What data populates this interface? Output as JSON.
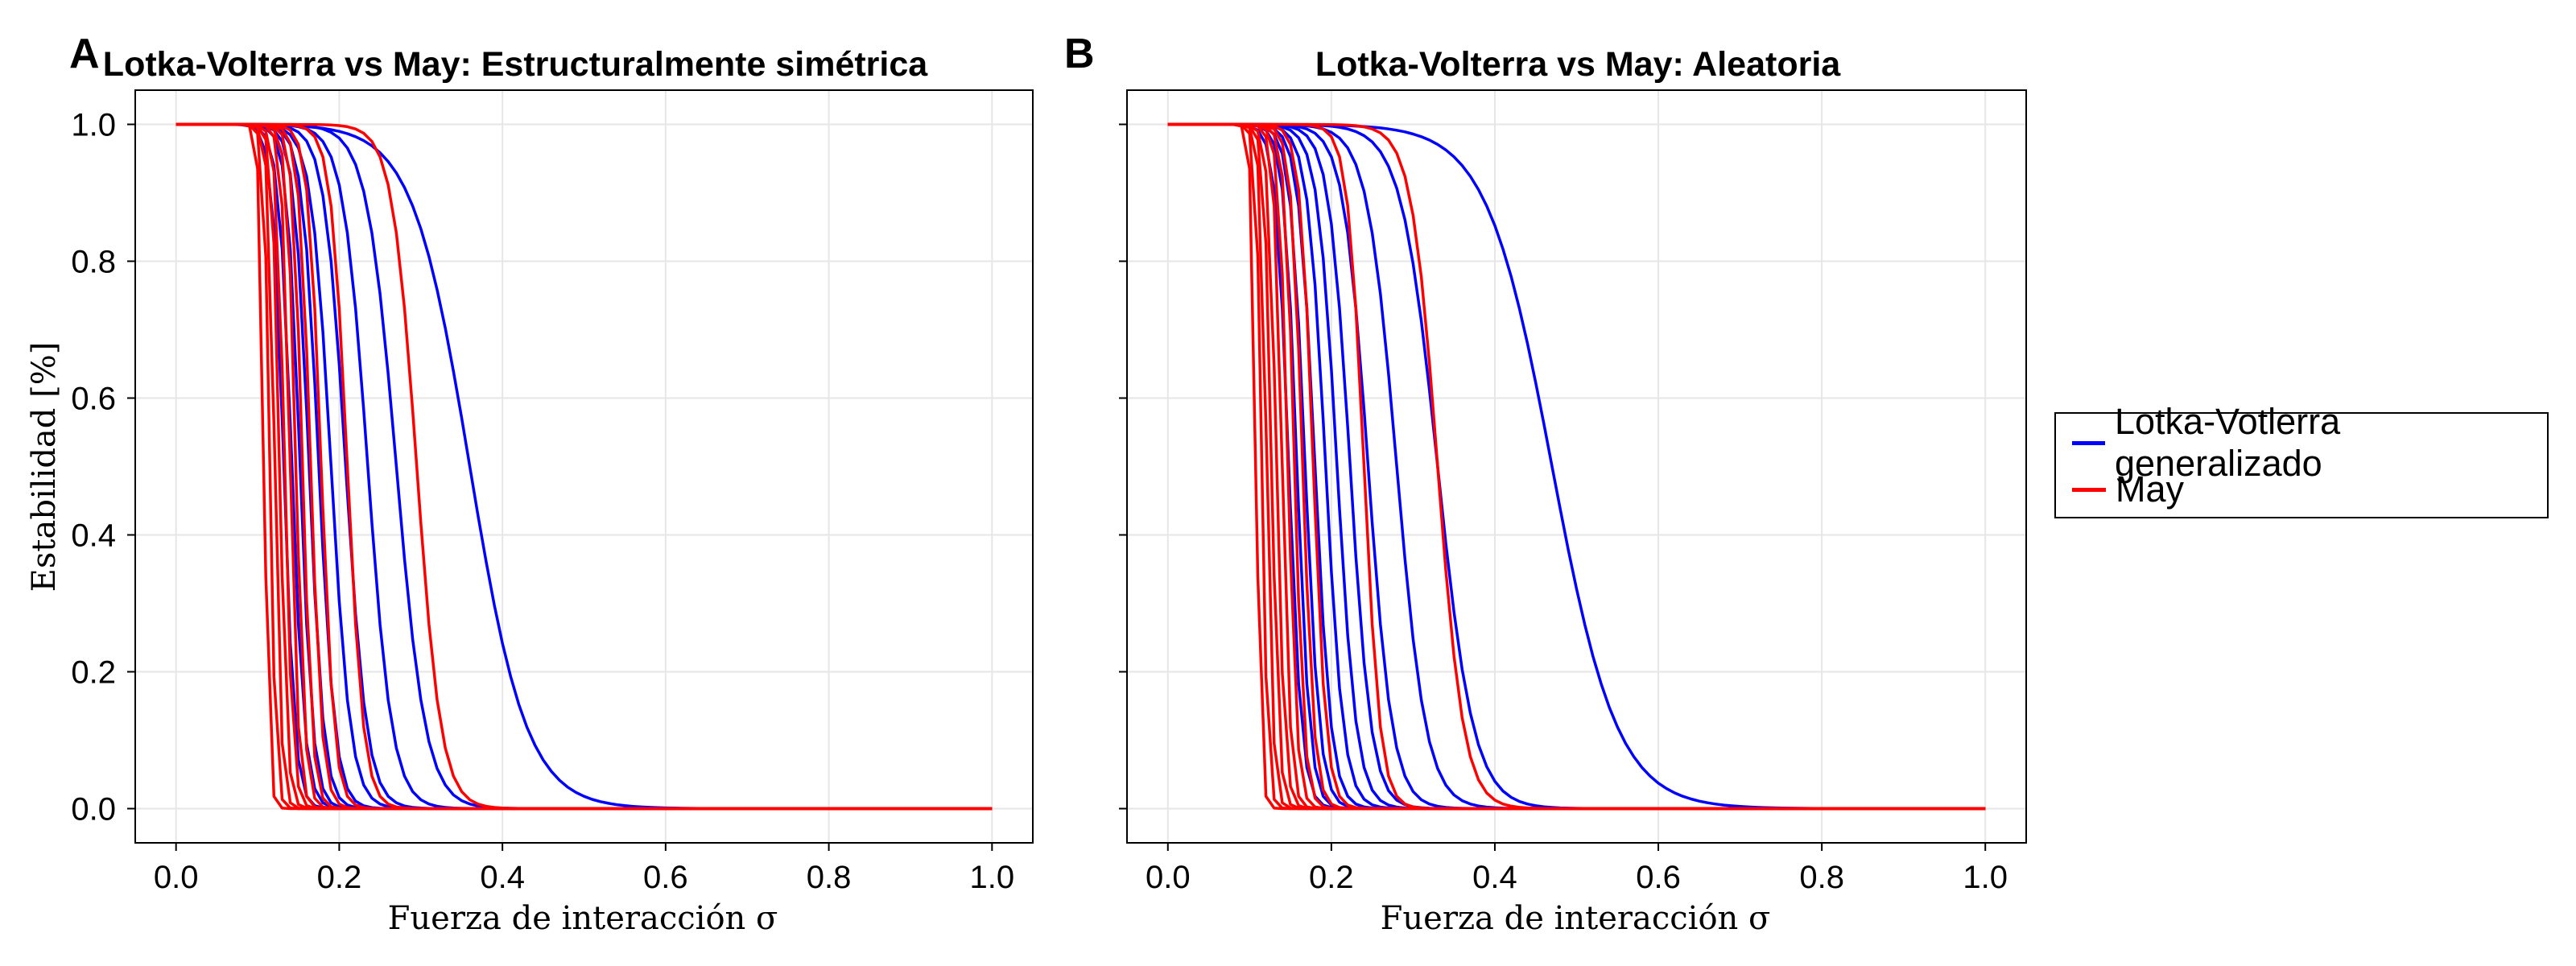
{
  "panels": [
    {
      "letter": "A",
      "title": "Lotka-Volterra vs May: Estructuralmente simétrica",
      "xlabel": "Fuerza de interacción σ",
      "ylabel": "Estabilidad [%]",
      "xticks": [
        "0.0",
        "0.2",
        "0.4",
        "0.6",
        "0.8",
        "1.0"
      ],
      "yticks": [
        "0.0",
        "0.2",
        "0.4",
        "0.6",
        "0.8",
        "1.0"
      ]
    },
    {
      "letter": "B",
      "title": "Lotka-Volterra vs May: Aleatoria",
      "xlabel": "Fuerza de interacción σ",
      "ylabel": "",
      "xticks": [
        "0.0",
        "0.2",
        "0.4",
        "0.6",
        "0.8",
        "1.0"
      ],
      "yticks": []
    }
  ],
  "legend": {
    "items": [
      {
        "label": "Lotka-Votlerra generalizado",
        "color": "#0000ff"
      },
      {
        "label": "May",
        "color": "#ff0000"
      }
    ]
  },
  "chart_data": [
    {
      "type": "line",
      "title": "Lotka-Volterra vs May: Estructuralmente simétrica",
      "xlabel": "Fuerza de interacción σ",
      "ylabel": "Estabilidad [%]",
      "xlim": [
        -0.05,
        1.05
      ],
      "ylim": [
        -0.05,
        1.05
      ],
      "grid": true,
      "curve_model": "logistic: y = 1 / (1 + exp((x - midpoint) / width)), x sampled 0 to 1 step 0.01",
      "series": [
        {
          "name": "Lotka-Votlerra generalizado",
          "color": "#0000ff",
          "midpoints": [
            0.132,
            0.142,
            0.152,
            0.163,
            0.175,
            0.19,
            0.208,
            0.235,
            0.27,
            0.36
          ],
          "widths": [
            0.007,
            0.008,
            0.008,
            0.009,
            0.01,
            0.012,
            0.013,
            0.015,
            0.018,
            0.035
          ]
        },
        {
          "name": "May",
          "color": "#ff0000",
          "midpoints": [
            0.108,
            0.115,
            0.121,
            0.127,
            0.133,
            0.14,
            0.147,
            0.155,
            0.165,
            0.178,
            0.21,
            0.295
          ],
          "widths": [
            0.003,
            0.0035,
            0.004,
            0.0045,
            0.005,
            0.005,
            0.0055,
            0.006,
            0.007,
            0.008,
            0.01,
            0.015
          ]
        }
      ]
    },
    {
      "type": "line",
      "title": "Lotka-Volterra vs May: Aleatoria",
      "xlabel": "Fuerza de interacción σ",
      "ylabel": "",
      "xlim": [
        -0.05,
        1.05
      ],
      "ylim": [
        -0.05,
        1.05
      ],
      "grid": true,
      "curve_model": "logistic: y = 1 / (1 + exp((x - midpoint) / width)), x sampled 0 to 1 step 0.01",
      "series": [
        {
          "name": "Lotka-Votlerra generalizado",
          "color": "#0000ff",
          "midpoints": [
            0.148,
            0.158,
            0.168,
            0.18,
            0.193,
            0.207,
            0.223,
            0.245,
            0.28,
            0.33,
            0.47
          ],
          "widths": [
            0.008,
            0.008,
            0.009,
            0.01,
            0.011,
            0.012,
            0.013,
            0.015,
            0.018,
            0.022,
            0.04
          ]
        },
        {
          "name": "May",
          "color": "#ff0000",
          "midpoints": [
            0.108,
            0.115,
            0.121,
            0.127,
            0.133,
            0.14,
            0.147,
            0.155,
            0.165,
            0.178,
            0.24,
            0.33
          ],
          "widths": [
            0.003,
            0.0035,
            0.004,
            0.0045,
            0.005,
            0.005,
            0.0055,
            0.006,
            0.007,
            0.008,
            0.01,
            0.016
          ]
        }
      ]
    }
  ]
}
